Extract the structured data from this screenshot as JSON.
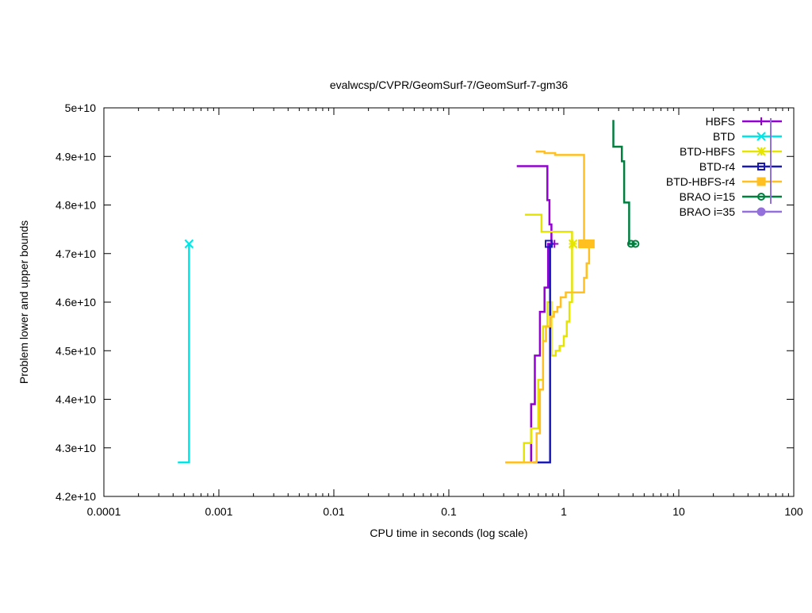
{
  "chart_data": {
    "type": "line",
    "title": "evalwcsp/CVPR/GeomSurf-7/GeomSurf-7-gm36",
    "xlabel": "CPU time in seconds (log scale)",
    "ylabel": "Problem lower and upper bounds",
    "x_scale": "log",
    "xlim": [
      0.0001,
      100
    ],
    "ylim": [
      42000000000,
      50000000000
    ],
    "x_ticks": [
      0.0001,
      0.001,
      0.01,
      0.1,
      1,
      10,
      100
    ],
    "x_tick_labels": [
      "0.0001",
      "0.001",
      "0.01",
      "0.1",
      "1",
      "10",
      "100"
    ],
    "y_ticks": [
      42000000000,
      43000000000,
      44000000000,
      45000000000,
      46000000000,
      47000000000,
      48000000000,
      49000000000,
      50000000000
    ],
    "y_tick_labels": [
      "4.2e+10",
      "4.3e+10",
      "4.4e+10",
      "4.5e+10",
      "4.6e+10",
      "4.7e+10",
      "4.8e+10",
      "4.9e+10",
      "5e+10"
    ],
    "grid": false,
    "legend_position": "top-right",
    "series": [
      {
        "name": "HBFS",
        "color": "#9400d3",
        "marker": "plus",
        "segments": [
          [
            [
              0.39,
              48800000000
            ],
            [
              0.72,
              48800000000
            ],
            [
              0.72,
              48100000000
            ],
            [
              0.75,
              48100000000
            ],
            [
              0.75,
              47600000000
            ],
            [
              0.78,
              47600000000
            ],
            [
              0.78,
              47200000000
            ],
            [
              0.84,
              47200000000
            ]
          ],
          [
            [
              0.52,
              42700000000
            ],
            [
              0.52,
              43900000000
            ],
            [
              0.56,
              43900000000
            ],
            [
              0.56,
              44900000000
            ],
            [
              0.62,
              44900000000
            ],
            [
              0.62,
              45800000000
            ],
            [
              0.68,
              45800000000
            ],
            [
              0.68,
              46300000000
            ],
            [
              0.73,
              46300000000
            ],
            [
              0.73,
              47200000000
            ],
            [
              0.77,
              47200000000
            ]
          ]
        ],
        "markers": [
          [
            0.83,
            47200000000
          ]
        ]
      },
      {
        "name": "BTD",
        "color": "#00e5e5",
        "marker": "x",
        "segments": [
          [
            [
              0.00044,
              42700000000
            ],
            [
              0.00055,
              42700000000
            ],
            [
              0.00055,
              47200000000
            ]
          ]
        ],
        "markers": [
          [
            0.00055,
            47200000000
          ]
        ]
      },
      {
        "name": "BTD-HBFS",
        "color": "#e5e500",
        "marker": "star",
        "segments": [
          [
            [
              0.46,
              47800000000
            ],
            [
              0.64,
              47800000000
            ],
            [
              0.64,
              47450000000
            ],
            [
              1.18,
              47450000000
            ],
            [
              1.18,
              47200000000
            ]
          ],
          [
            [
              0.31,
              42700000000
            ],
            [
              0.45,
              42700000000
            ],
            [
              0.45,
              43100000000
            ],
            [
              0.52,
              43100000000
            ],
            [
              0.52,
              43400000000
            ],
            [
              0.6,
              43400000000
            ],
            [
              0.6,
              44400000000
            ],
            [
              0.66,
              44400000000
            ],
            [
              0.66,
              45500000000
            ],
            [
              0.72,
              45500000000
            ],
            [
              0.72,
              46000000000
            ],
            [
              0.78,
              46000000000
            ],
            [
              0.78,
              44900000000
            ],
            [
              0.85,
              44900000000
            ],
            [
              0.85,
              45000000000
            ],
            [
              0.92,
              45000000000
            ],
            [
              0.92,
              45100000000
            ],
            [
              1.0,
              45100000000
            ],
            [
              1.0,
              45300000000
            ],
            [
              1.06,
              45300000000
            ],
            [
              1.06,
              45600000000
            ],
            [
              1.12,
              45600000000
            ],
            [
              1.12,
              46000000000
            ],
            [
              1.18,
              46000000000
            ],
            [
              1.18,
              47200000000
            ],
            [
              1.21,
              47200000000
            ]
          ]
        ],
        "markers": [
          [
            1.2,
            47200000000
          ]
        ]
      },
      {
        "name": "BTD-r4",
        "color": "#1a1ab3",
        "marker": "square",
        "segments": [
          [
            [
              0.54,
              42700000000
            ],
            [
              0.76,
              42700000000
            ],
            [
              0.76,
              47200000000
            ]
          ]
        ],
        "markers": [
          [
            0.74,
            47200000000
          ]
        ]
      },
      {
        "name": "BTD-HBFS-r4",
        "color": "#ffc020",
        "marker": "filled-square",
        "segments": [
          [
            [
              0.57,
              49100000000
            ],
            [
              0.68,
              49100000000
            ],
            [
              0.68,
              49070000000
            ],
            [
              0.84,
              49070000000
            ],
            [
              0.84,
              49030000000
            ],
            [
              1.5,
              49030000000
            ],
            [
              1.5,
              47200000000
            ]
          ],
          [
            [
              0.31,
              42700000000
            ],
            [
              0.58,
              42700000000
            ],
            [
              0.58,
              43300000000
            ],
            [
              0.62,
              43300000000
            ],
            [
              0.62,
              44200000000
            ],
            [
              0.66,
              44200000000
            ],
            [
              0.66,
              45200000000
            ],
            [
              0.7,
              45200000000
            ],
            [
              0.7,
              45500000000
            ],
            [
              0.76,
              45500000000
            ],
            [
              0.76,
              45700000000
            ],
            [
              0.82,
              45700000000
            ],
            [
              0.82,
              45800000000
            ],
            [
              0.88,
              45800000000
            ],
            [
              0.88,
              45900000000
            ],
            [
              0.94,
              45900000000
            ],
            [
              0.94,
              46100000000
            ],
            [
              1.04,
              46100000000
            ],
            [
              1.04,
              46200000000
            ],
            [
              1.5,
              46200000000
            ],
            [
              1.5,
              46500000000
            ],
            [
              1.58,
              46500000000
            ],
            [
              1.58,
              46800000000
            ],
            [
              1.66,
              46800000000
            ],
            [
              1.66,
              47200000000
            ],
            [
              1.8,
              47200000000
            ]
          ]
        ],
        "markers": [
          [
            1.45,
            47200000000
          ],
          [
            1.7,
            47200000000
          ]
        ]
      },
      {
        "name": "BRAO i=15",
        "color": "#007f3f",
        "marker": "circle",
        "segments": [
          [
            [
              2.7,
              49750000000
            ],
            [
              2.7,
              49200000000
            ],
            [
              3.2,
              49200000000
            ],
            [
              3.2,
              48900000000
            ],
            [
              3.35,
              48900000000
            ],
            [
              3.35,
              48050000000
            ],
            [
              3.7,
              48050000000
            ],
            [
              3.7,
              47200000000
            ],
            [
              4.3,
              47200000000
            ]
          ]
        ],
        "markers": [
          [
            3.85,
            47200000000
          ],
          [
            4.2,
            47200000000
          ]
        ]
      },
      {
        "name": "BRAO i=35",
        "color": "#9370db",
        "marker": "filled-circle",
        "segments": [],
        "markers": []
      }
    ]
  }
}
